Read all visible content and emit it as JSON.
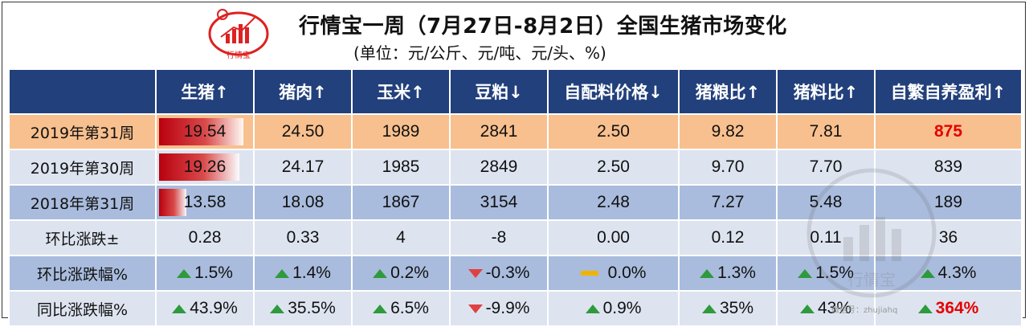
{
  "header": {
    "title": "行情宝一周（7月27日-8月2日）全国生猪市场变化",
    "subtitle": "(单位：元/公斤、元/吨、元/头、%)",
    "logo_text": "行情宝"
  },
  "table": {
    "columns": [
      "",
      "生猪↑",
      "猪肉↑",
      "玉米↑",
      "豆粕↓",
      "自配料价格↓",
      "猪粮比↑",
      "猪料比↑",
      "自繁自养盈利↑"
    ],
    "rows": [
      {
        "label": "2019年第31周",
        "cells": [
          "19.54",
          "24.50",
          "1989",
          "2841",
          "2.50",
          "9.82",
          "7.81",
          "875"
        ],
        "bar": 1.0
      },
      {
        "label": "2019年第30周",
        "cells": [
          "19.26",
          "24.17",
          "1985",
          "2849",
          "2.50",
          "9.70",
          "7.70",
          "839"
        ],
        "bar": 0.95
      },
      {
        "label": "2018年第31周",
        "cells": [
          "13.58",
          "18.08",
          "1867",
          "3154",
          "2.48",
          "7.27",
          "5.48",
          "189"
        ],
        "bar": 0.32
      },
      {
        "label": "环比涨跌±",
        "cells": [
          "0.28",
          "0.33",
          "4",
          "-8",
          "0.00",
          "0.12",
          "0.11",
          "36"
        ]
      },
      {
        "label": "环比涨跌幅%",
        "cells": [
          "1.5%",
          "1.4%",
          "0.2%",
          "-0.3%",
          "0.0%",
          "1.3%",
          "1.5%",
          "4.3%"
        ],
        "indicators": [
          "up",
          "up",
          "up",
          "down",
          "flat",
          "up",
          "up",
          "up"
        ]
      },
      {
        "label": "同比涨跌幅%",
        "cells": [
          "43.9%",
          "35.5%",
          "6.5%",
          "-9.9%",
          "0.9%",
          "35%",
          "43%",
          "364%"
        ],
        "indicators": [
          "up",
          "up",
          "up",
          "down",
          "up",
          "up",
          "up",
          "up"
        ]
      }
    ]
  },
  "watermark": {
    "text": "微信号：zhujiahq",
    "logo_text": "行情宝"
  },
  "colors": {
    "header_bg": "#22407b",
    "highlight_row": "#f8c08e",
    "band_light": "#dde4f0",
    "band_dark": "#a9bcdd",
    "accent_red": "#e60000",
    "up": "#2e9a3c",
    "down": "#e04040",
    "flat": "#f0b400"
  }
}
